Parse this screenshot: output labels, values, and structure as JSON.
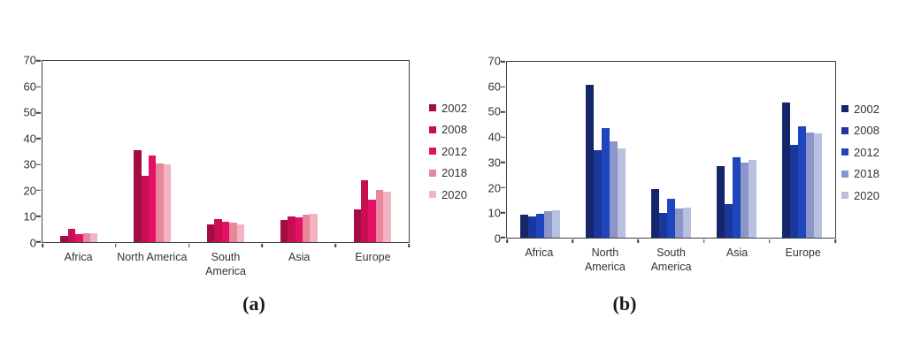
{
  "figure": {
    "background": "#ffffff",
    "caption_a": "(a)",
    "caption_b": "(b)"
  },
  "chart_data": [
    {
      "id": "a",
      "type": "bar",
      "caption": "(a)",
      "title": "",
      "xlabel": "",
      "ylabel": "",
      "categories": [
        "Africa",
        "North America",
        "South America",
        "Asia",
        "Europe"
      ],
      "series": [
        {
          "name": "2002",
          "color": "#A30D44",
          "values": [
            2.5,
            35.5,
            7,
            8.5,
            12.5
          ]
        },
        {
          "name": "2008",
          "color": "#C60E51",
          "values": [
            5,
            25.5,
            9,
            10,
            24
          ]
        },
        {
          "name": "2012",
          "color": "#E31166",
          "values": [
            3,
            33.5,
            8,
            9.5,
            16.5
          ]
        },
        {
          "name": "2018",
          "color": "#E8869C",
          "values": [
            3.5,
            30.5,
            7.5,
            10.5,
            20
          ]
        },
        {
          "name": "2020",
          "color": "#F2B4C2",
          "values": [
            3.5,
            30,
            7,
            11,
            19.5
          ]
        }
      ],
      "ylim": [
        0,
        70
      ],
      "yticks": [
        0,
        10,
        20,
        30,
        40,
        50,
        60,
        70
      ],
      "grid": false,
      "legend_position": "right"
    },
    {
      "id": "b",
      "type": "bar",
      "caption": "(b)",
      "title": "",
      "xlabel": "",
      "ylabel": "",
      "categories": [
        "Africa",
        "North America",
        "South America",
        "Asia",
        "Europe"
      ],
      "series": [
        {
          "name": "2002",
          "color": "#16266B",
          "values": [
            9,
            61,
            19.5,
            28.5,
            54
          ]
        },
        {
          "name": "2008",
          "color": "#1B369C",
          "values": [
            8.5,
            35,
            10,
            13.5,
            37
          ]
        },
        {
          "name": "2012",
          "color": "#1F46BE",
          "values": [
            9.5,
            43.5,
            15.5,
            32,
            44.5
          ]
        },
        {
          "name": "2018",
          "color": "#8D96C8",
          "values": [
            10.5,
            38.5,
            11.5,
            30,
            42
          ]
        },
        {
          "name": "2020",
          "color": "#BAC0E0",
          "values": [
            11,
            35.5,
            12,
            31,
            41.5
          ]
        }
      ],
      "ylim": [
        0,
        70
      ],
      "yticks": [
        0,
        10,
        20,
        30,
        40,
        50,
        60,
        70
      ],
      "grid": false,
      "legend_position": "right"
    }
  ]
}
